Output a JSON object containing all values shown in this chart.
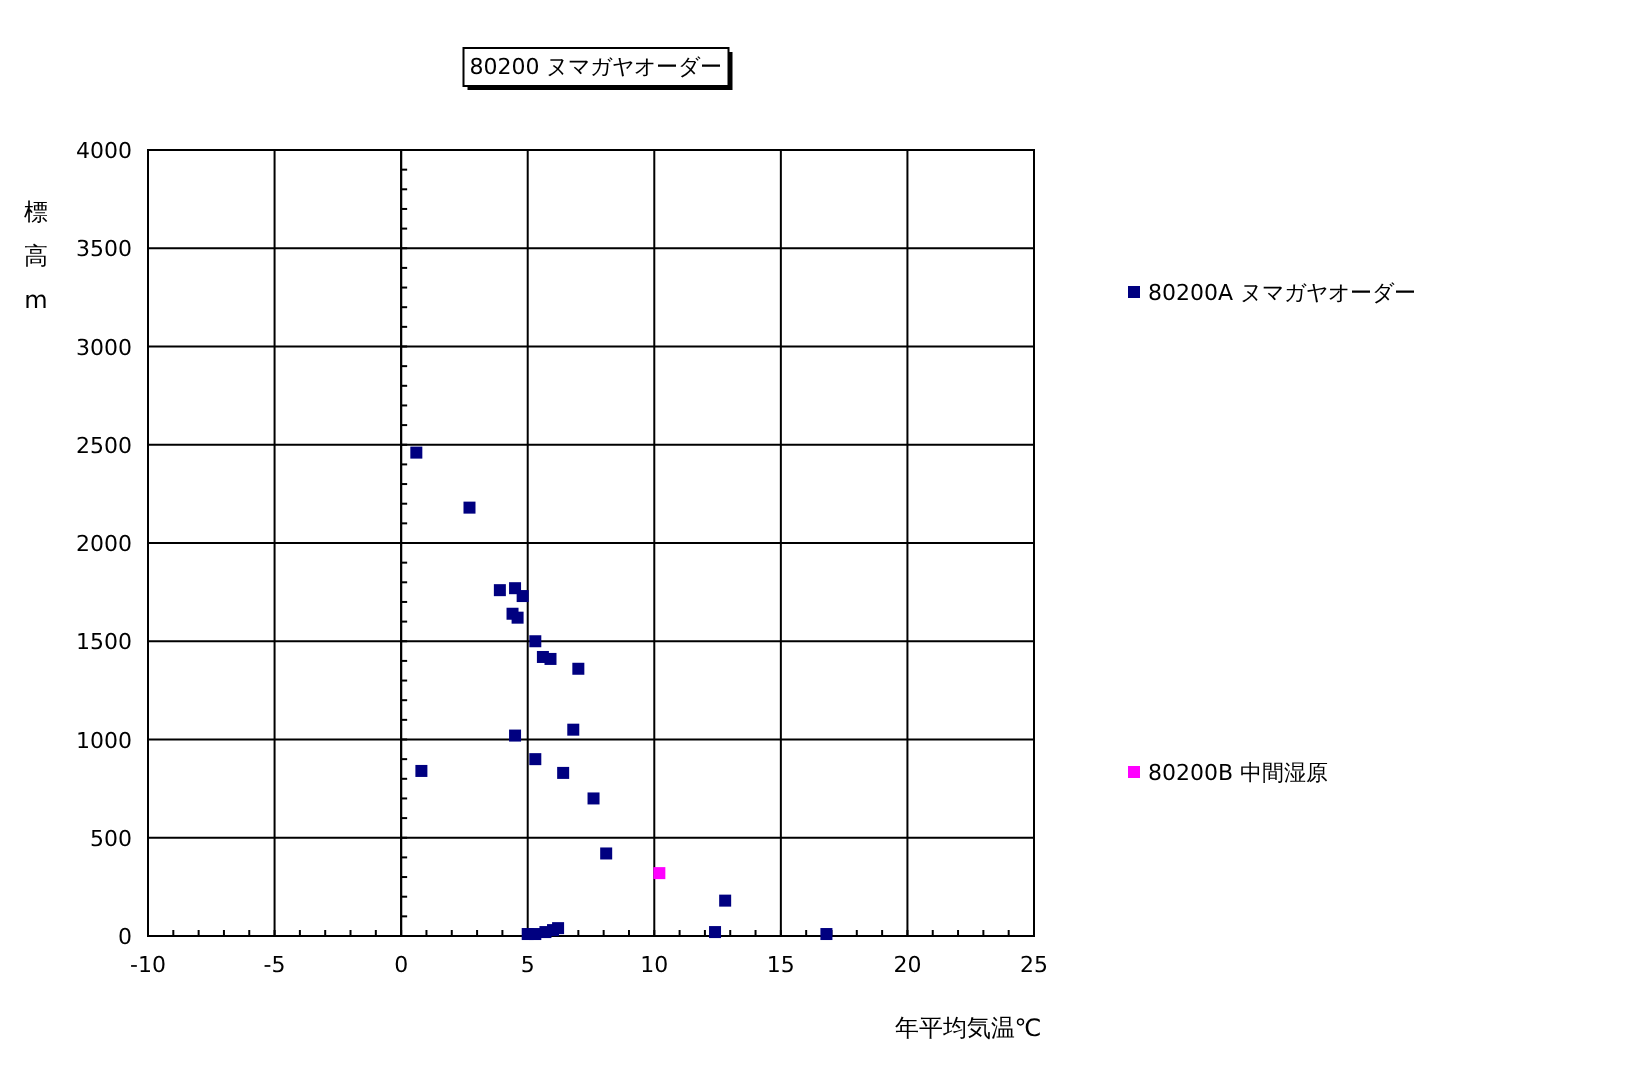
{
  "chart_data": {
    "type": "scatter",
    "title": "80200 ヌマガヤオーダー",
    "xlabel": "年平均気温℃",
    "ylabel": "標高m",
    "xlim": [
      -10,
      25
    ],
    "xticks": [
      -10,
      -5,
      0,
      5,
      10,
      15,
      20,
      25
    ],
    "ylim": [
      0,
      4000
    ],
    "yticks": [
      0,
      500,
      1000,
      1500,
      2000,
      2500,
      3000,
      3500,
      4000
    ],
    "grid": true,
    "legend": "right",
    "marker": "square",
    "series": [
      {
        "name": "80200A ヌマガヤオーダー",
        "color": "#000080",
        "x": [
          0.6,
          2.7,
          3.9,
          4.5,
          4.8,
          4.4,
          4.6,
          5.3,
          5.6,
          5.9,
          7.0,
          5.3,
          4.5,
          6.8,
          0.8,
          6.4,
          7.6,
          8.1,
          12.8,
          12.4,
          16.8,
          5.0,
          5.3,
          5.7,
          6.0,
          6.2
        ],
        "values": [
          2460,
          2180,
          1760,
          1770,
          1730,
          1640,
          1620,
          1500,
          1420,
          1410,
          1360,
          900,
          1020,
          1050,
          840,
          830,
          700,
          420,
          180,
          20,
          10,
          10,
          10,
          20,
          30,
          40
        ]
      },
      {
        "name": "80200B 中間湿原",
        "color": "#ff00ff",
        "x": [
          10.2
        ],
        "values": [
          320
        ]
      }
    ]
  }
}
